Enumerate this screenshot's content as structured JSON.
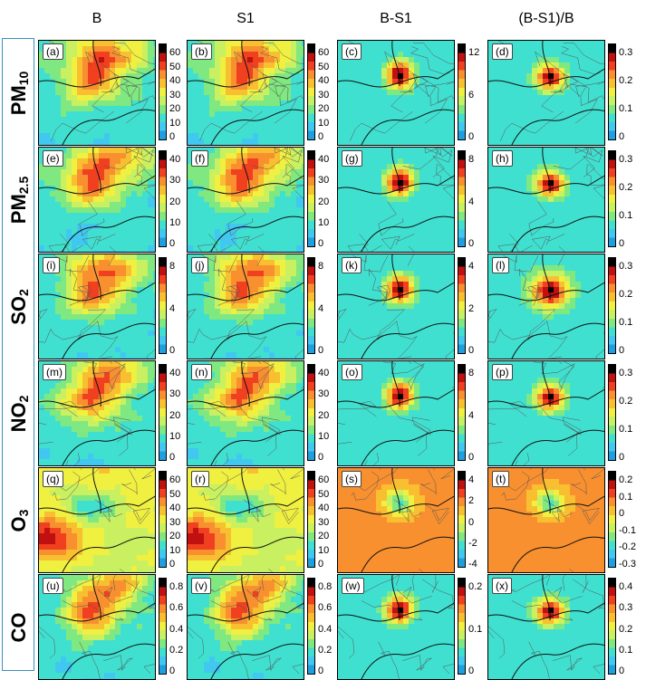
{
  "columns": [
    "B",
    "S1",
    "B-S1",
    "(B-S1)/B"
  ],
  "rows": [
    {
      "species": "PM",
      "sub": "10",
      "panels": [
        "(a)",
        "(b)",
        "(c)",
        "(d)"
      ],
      "ticks": [
        [
          "60",
          "50",
          "40",
          "30",
          "20",
          "10",
          "0"
        ],
        [
          "60",
          "50",
          "40",
          "30",
          "20",
          "10",
          "0"
        ],
        [
          "12",
          "6",
          "0"
        ],
        [
          "0.3",
          "0.2",
          "0.1",
          "0"
        ]
      ],
      "scheme": [
        "conc",
        "conc",
        "diff",
        "ratio"
      ]
    },
    {
      "species": "PM",
      "sub": "2.5",
      "panels": [
        "(e)",
        "(f)",
        "(g)",
        "(h)"
      ],
      "ticks": [
        [
          "40",
          "30",
          "20",
          "10",
          "0"
        ],
        [
          "40",
          "30",
          "20",
          "10",
          "0"
        ],
        [
          "8",
          "4",
          "0"
        ],
        [
          "0.3",
          "0.2",
          "0.1",
          "0"
        ]
      ],
      "scheme": [
        "conc",
        "conc",
        "diff",
        "ratio"
      ]
    },
    {
      "species": "SO",
      "sub": "2",
      "panels": [
        "(i)",
        "(j)",
        "(k)",
        "(l)"
      ],
      "ticks": [
        [
          "8",
          "4",
          "0"
        ],
        [
          "8",
          "4",
          "0"
        ],
        [
          "4",
          "2",
          "0"
        ],
        [
          "0.3",
          "0.2",
          "0.1",
          "0"
        ]
      ],
      "scheme": [
        "conc",
        "conc",
        "diff",
        "ratio"
      ]
    },
    {
      "species": "NO",
      "sub": "2",
      "panels": [
        "(m)",
        "(n)",
        "(o)",
        "(p)"
      ],
      "ticks": [
        [
          "40",
          "30",
          "20",
          "10",
          "0"
        ],
        [
          "40",
          "30",
          "20",
          "10",
          "0"
        ],
        [
          "8",
          "4",
          "0"
        ],
        [
          "0.3",
          "0.2",
          "0.1",
          "0"
        ]
      ],
      "scheme": [
        "conc",
        "conc",
        "diff",
        "ratio"
      ]
    },
    {
      "species": "O",
      "sub": "3",
      "panels": [
        "(q)",
        "(r)",
        "(s)",
        "(t)"
      ],
      "ticks": [
        [
          "60",
          "50",
          "40",
          "30",
          "20",
          "10",
          "0"
        ],
        [
          "60",
          "50",
          "40",
          "30",
          "20",
          "10",
          "0"
        ],
        [
          "4",
          "2",
          "0",
          "-2",
          "-4"
        ],
        [
          "0.2",
          "0.1",
          "0",
          "-0.1",
          "-0.2",
          "-0.3"
        ]
      ],
      "scheme": [
        "conc",
        "conc",
        "o3diff",
        "o3ratio"
      ]
    },
    {
      "species": "CO",
      "sub": "",
      "panels": [
        "(u)",
        "(v)",
        "(w)",
        "(x)"
      ],
      "ticks": [
        [
          "0.8",
          "0.6",
          "0.4",
          "0.2",
          "0"
        ],
        [
          "0.8",
          "0.6",
          "0.4",
          "0.2",
          "0"
        ],
        [
          "0.2",
          "0.1",
          "0"
        ],
        [
          "0.4",
          "0.3",
          "0.2",
          "0.1",
          "0"
        ]
      ],
      "scheme": [
        "conc",
        "conc",
        "diff",
        "ratio"
      ]
    }
  ],
  "colormap": [
    "#1f9fe0",
    "#40c8f0",
    "#40e0d0",
    "#80e880",
    "#c8f060",
    "#f0f040",
    "#f8c030",
    "#f89030",
    "#f04020",
    "#c01010",
    "#000000"
  ]
}
